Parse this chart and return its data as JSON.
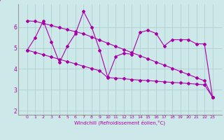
{
  "xlabel": "Windchill (Refroidissement éolien,°C)",
  "x": [
    0,
    1,
    2,
    3,
    4,
    5,
    6,
    7,
    8,
    9,
    10,
    11,
    12,
    13,
    14,
    15,
    16,
    17,
    18,
    19,
    20,
    21,
    22,
    23
  ],
  "line1": [
    4.9,
    5.5,
    6.3,
    5.3,
    4.3,
    5.1,
    5.7,
    6.75,
    6.0,
    4.9,
    3.6,
    4.6,
    4.75,
    4.7,
    5.75,
    5.85,
    5.7,
    5.1,
    5.4,
    5.4,
    5.4,
    5.2,
    5.2,
    2.65
  ],
  "line2": [
    6.3,
    6.28,
    6.18,
    6.08,
    5.98,
    5.88,
    5.78,
    5.68,
    5.53,
    5.38,
    5.23,
    5.08,
    4.93,
    4.78,
    4.63,
    4.48,
    4.33,
    4.18,
    4.03,
    3.88,
    3.73,
    3.58,
    3.43,
    2.65
  ],
  "line3": [
    4.9,
    4.79,
    4.68,
    4.57,
    4.46,
    4.35,
    4.24,
    4.13,
    4.02,
    3.91,
    3.58,
    3.56,
    3.53,
    3.49,
    3.46,
    3.44,
    3.41,
    3.38,
    3.35,
    3.33,
    3.3,
    3.27,
    3.24,
    2.65
  ],
  "color": "#aa00aa",
  "bg_color": "#cce8e8",
  "grid_color": "#aacccc",
  "ylim": [
    1.8,
    7.1
  ],
  "yticks": [
    2,
    3,
    4,
    5,
    6
  ],
  "xtick_labels": [
    "0",
    "1",
    "2",
    "3",
    "4",
    "5",
    "6",
    "7",
    "8",
    "9",
    "10",
    "11",
    "12",
    "13",
    "14",
    "15",
    "16",
    "17",
    "18",
    "19",
    "20",
    "21",
    "22",
    "23"
  ]
}
